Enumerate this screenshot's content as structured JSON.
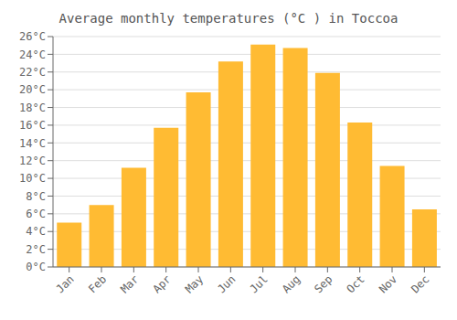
{
  "chart_data": {
    "type": "bar",
    "title": "Average monthly temperatures (°C ) in Toccoa",
    "categories": [
      "Jan",
      "Feb",
      "Mar",
      "Apr",
      "May",
      "Jun",
      "Jul",
      "Aug",
      "Sep",
      "Oct",
      "Nov",
      "Dec"
    ],
    "values": [
      5.0,
      7.0,
      11.2,
      15.7,
      19.7,
      23.2,
      25.1,
      24.7,
      21.9,
      16.3,
      11.4,
      6.5
    ],
    "color": "#FFBB33",
    "ylim": [
      0,
      26
    ],
    "yticks": [
      {
        "value": 0,
        "label": "0°C"
      },
      {
        "value": 2,
        "label": "2°C"
      },
      {
        "value": 4,
        "label": "4°C"
      },
      {
        "value": 6,
        "label": "6°C"
      },
      {
        "value": 8,
        "label": "8°C"
      },
      {
        "value": 10,
        "label": "10°C"
      },
      {
        "value": 12,
        "label": "12°C"
      },
      {
        "value": 14,
        "label": "14°C"
      },
      {
        "value": 16,
        "label": "16°C"
      },
      {
        "value": 18,
        "label": "18°C"
      },
      {
        "value": 20,
        "label": "20°C"
      },
      {
        "value": 22,
        "label": "22°C"
      },
      {
        "value": 24,
        "label": "24°C"
      },
      {
        "value": 26,
        "label": "26°C"
      }
    ],
    "grid": true
  }
}
